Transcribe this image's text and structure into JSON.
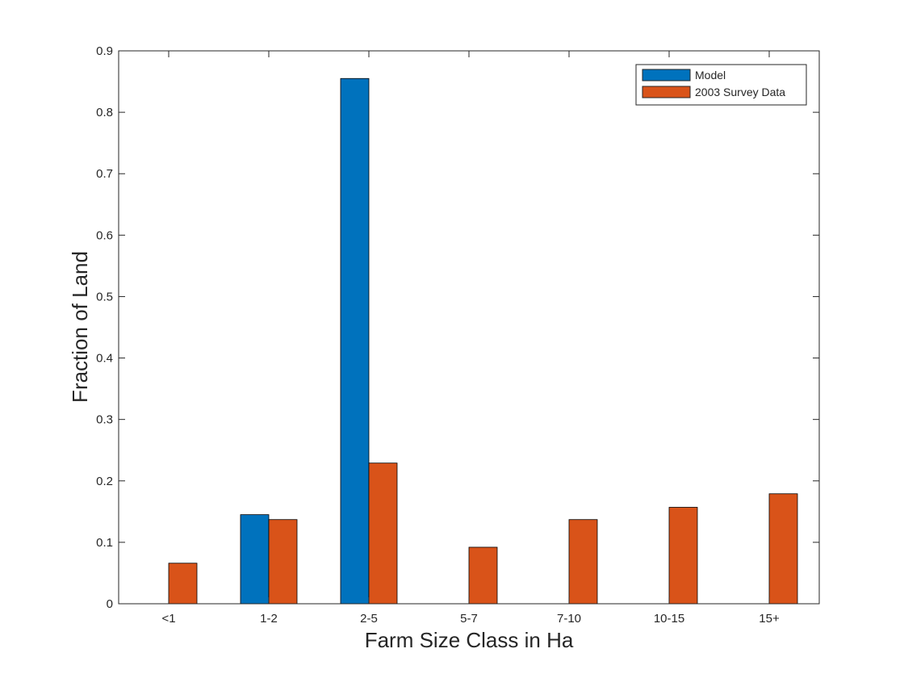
{
  "chart_data": {
    "type": "bar",
    "categories": [
      "<1",
      "1-2",
      "2-5",
      "5-7",
      "7-10",
      "10-15",
      "15+"
    ],
    "series": [
      {
        "name": "Model",
        "color": "#0072BD",
        "values": [
          0,
          0.145,
          0.855,
          0,
          0,
          0,
          0
        ]
      },
      {
        "name": "2003 Survey Data",
        "color": "#D95319",
        "values": [
          0.066,
          0.137,
          0.229,
          0.092,
          0.137,
          0.157,
          0.179
        ]
      }
    ],
    "title": "",
    "xlabel": "Farm Size Class in Ha",
    "ylabel": "Fraction of Land",
    "ylim": [
      0,
      0.9
    ],
    "yticks": [
      "0",
      "0.1",
      "0.2",
      "0.3",
      "0.4",
      "0.5",
      "0.6",
      "0.7",
      "0.8",
      "0.9"
    ],
    "grid": false,
    "legend_position": "top-right"
  }
}
